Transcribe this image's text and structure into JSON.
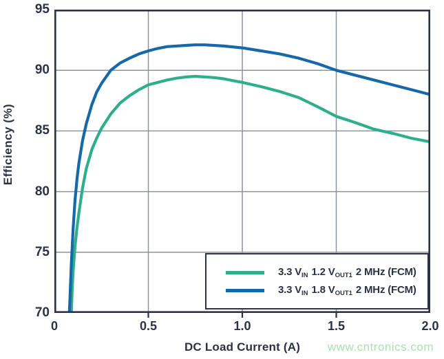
{
  "watermark": "www.cntronics.com",
  "chart_data": {
    "type": "line",
    "title": "",
    "xlabel": "DC Load Current (A)",
    "ylabel": "Efficiency (%)",
    "xlim": [
      0,
      2.0
    ],
    "ylim": [
      70,
      95
    ],
    "grid": true,
    "legend_position": "lower right",
    "xticks": [
      0,
      0.5,
      1.0,
      1.5,
      2.0
    ],
    "xtick_labels": [
      "0",
      "0.5",
      "1.0",
      "1.5",
      "2.0"
    ],
    "yticks": [
      95,
      90,
      85,
      80,
      75,
      70
    ],
    "ytick_labels": [
      "95",
      "90",
      "85",
      "80",
      "75",
      "70"
    ],
    "x_gridlines": [
      0.5,
      1.0,
      1.5
    ],
    "y_gridlines": [
      75,
      80,
      85,
      90
    ],
    "colors": {
      "axis": "#2c3143",
      "grid": "#8d929b",
      "green_series": "#2fae8d",
      "blue_series": "#1768a8",
      "watermark": "#a9e3ae"
    },
    "series": [
      {
        "name": "3.3 VIN 1.2 VOUT1 2 MHz (FCM)",
        "color": "#2fae8d",
        "points": [
          [
            0.09,
            70
          ],
          [
            0.095,
            72
          ],
          [
            0.1,
            73.5
          ],
          [
            0.11,
            75.5
          ],
          [
            0.12,
            77
          ],
          [
            0.13,
            78.2
          ],
          [
            0.15,
            80.3
          ],
          [
            0.17,
            81.9
          ],
          [
            0.2,
            83.5
          ],
          [
            0.225,
            84.4
          ],
          [
            0.25,
            85.2
          ],
          [
            0.3,
            86.4
          ],
          [
            0.35,
            87.3
          ],
          [
            0.4,
            87.9
          ],
          [
            0.45,
            88.4
          ],
          [
            0.5,
            88.8
          ],
          [
            0.55,
            89.0
          ],
          [
            0.6,
            89.2
          ],
          [
            0.65,
            89.35
          ],
          [
            0.7,
            89.45
          ],
          [
            0.75,
            89.5
          ],
          [
            0.8,
            89.45
          ],
          [
            0.85,
            89.4
          ],
          [
            0.9,
            89.3
          ],
          [
            0.95,
            89.15
          ],
          [
            1.0,
            89.0
          ],
          [
            1.1,
            88.65
          ],
          [
            1.2,
            88.25
          ],
          [
            1.3,
            87.75
          ],
          [
            1.4,
            87.0
          ],
          [
            1.5,
            86.2
          ],
          [
            1.6,
            85.7
          ],
          [
            1.7,
            85.15
          ],
          [
            1.8,
            84.8
          ],
          [
            1.9,
            84.4
          ],
          [
            2.0,
            84.1
          ]
        ]
      },
      {
        "name": "3.3 VIN 1.8 VOUT1 2 MHz (FCM)",
        "color": "#1768a8",
        "points": [
          [
            0.08,
            70
          ],
          [
            0.085,
            72
          ],
          [
            0.09,
            74
          ],
          [
            0.1,
            77
          ],
          [
            0.11,
            79.3
          ],
          [
            0.12,
            81
          ],
          [
            0.13,
            82.3
          ],
          [
            0.15,
            84.2
          ],
          [
            0.17,
            85.6
          ],
          [
            0.2,
            87.2
          ],
          [
            0.225,
            88.2
          ],
          [
            0.25,
            88.9
          ],
          [
            0.3,
            90.0
          ],
          [
            0.35,
            90.6
          ],
          [
            0.4,
            91.0
          ],
          [
            0.45,
            91.35
          ],
          [
            0.5,
            91.6
          ],
          [
            0.55,
            91.8
          ],
          [
            0.6,
            91.95
          ],
          [
            0.7,
            92.05
          ],
          [
            0.75,
            92.1
          ],
          [
            0.8,
            92.1
          ],
          [
            0.9,
            92.0
          ],
          [
            1.0,
            91.85
          ],
          [
            1.1,
            91.6
          ],
          [
            1.2,
            91.35
          ],
          [
            1.3,
            91.0
          ],
          [
            1.4,
            90.55
          ],
          [
            1.5,
            90.0
          ],
          [
            1.6,
            89.6
          ],
          [
            1.7,
            89.2
          ],
          [
            1.8,
            88.8
          ],
          [
            1.9,
            88.4
          ],
          [
            2.0,
            88.0
          ]
        ]
      }
    ],
    "legend": {
      "items": [
        {
          "p1": "3.3 V",
          "s1": "IN",
          "p2": "1.2 V",
          "s2": "OUT1",
          "p3": "2 MHz (FCM)"
        },
        {
          "p1": "3.3 V",
          "s1": "IN",
          "p2": "1.8 V",
          "s2": "OUT1",
          "p3": "2 MHz (FCM)"
        }
      ]
    }
  }
}
